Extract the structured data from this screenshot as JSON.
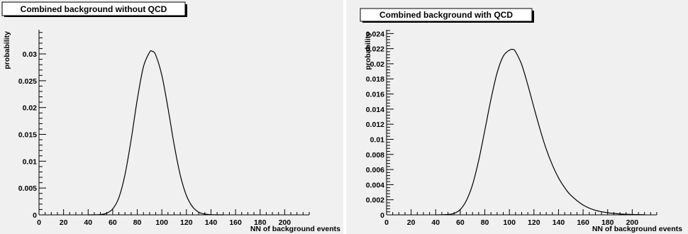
{
  "chart_data": [
    {
      "type": "line",
      "title": "Combined background without QCD",
      "xlabel": "NN of background events",
      "ylabel": "probability",
      "xlim": [
        0,
        220
      ],
      "ylim": [
        0,
        0.0345
      ],
      "x_major_ticks": [
        0,
        20,
        40,
        60,
        80,
        100,
        120,
        140,
        160,
        180,
        200
      ],
      "y_major_ticks": [
        0,
        0.005,
        0.01,
        0.015,
        0.02,
        0.025,
        0.03
      ],
      "y_tick_labels": [
        "0",
        "0.005",
        "0.01",
        "0.015",
        "0.02",
        "0.025",
        "0.03"
      ],
      "series": [
        {
          "x": [
            40,
            50,
            55,
            60,
            65,
            70,
            75,
            80,
            85,
            90,
            92,
            95,
            100,
            105,
            110,
            115,
            120,
            125,
            130,
            135,
            140,
            150
          ],
          "y": [
            0,
            5e-05,
            0.0003,
            0.0011,
            0.0032,
            0.0075,
            0.014,
            0.0215,
            0.0276,
            0.0303,
            0.0305,
            0.0298,
            0.026,
            0.0199,
            0.0131,
            0.0074,
            0.0036,
            0.0015,
            0.0005,
            0.00015,
            3e-05,
            0
          ]
        }
      ],
      "grid": false
    },
    {
      "type": "line",
      "title": "Combined background with QCD",
      "xlabel": "NN of background events",
      "ylabel": "probability",
      "xlim": [
        0,
        220
      ],
      "ylim": [
        0,
        0.0245
      ],
      "x_major_ticks": [
        0,
        20,
        40,
        60,
        80,
        100,
        120,
        140,
        160,
        180,
        200
      ],
      "y_major_ticks": [
        0,
        0.002,
        0.004,
        0.006,
        0.008,
        0.01,
        0.012,
        0.014,
        0.016,
        0.018,
        0.02,
        0.022,
        0.024
      ],
      "y_tick_labels": [
        "0",
        "0.002",
        "0.004",
        "0.006",
        "0.008",
        "0.01",
        "0.012",
        "0.014",
        "0.016",
        "0.018",
        "0.02",
        "0.022",
        "0.024"
      ],
      "series": [
        {
          "x": [
            40,
            50,
            55,
            60,
            65,
            70,
            75,
            80,
            85,
            90,
            95,
            100,
            103,
            105,
            110,
            115,
            120,
            125,
            130,
            135,
            140,
            145,
            150,
            160,
            170,
            180,
            190,
            200,
            210
          ],
          "y": [
            0,
            5e-05,
            0.0002,
            0.0007,
            0.0019,
            0.004,
            0.0072,
            0.0112,
            0.0153,
            0.0188,
            0.021,
            0.0218,
            0.0219,
            0.0216,
            0.0199,
            0.0172,
            0.0142,
            0.0113,
            0.0087,
            0.0066,
            0.0049,
            0.0036,
            0.0026,
            0.0013,
            0.0006,
            0.00028,
            0.00012,
            5e-05,
            2e-05
          ]
        }
      ],
      "grid": false
    }
  ]
}
